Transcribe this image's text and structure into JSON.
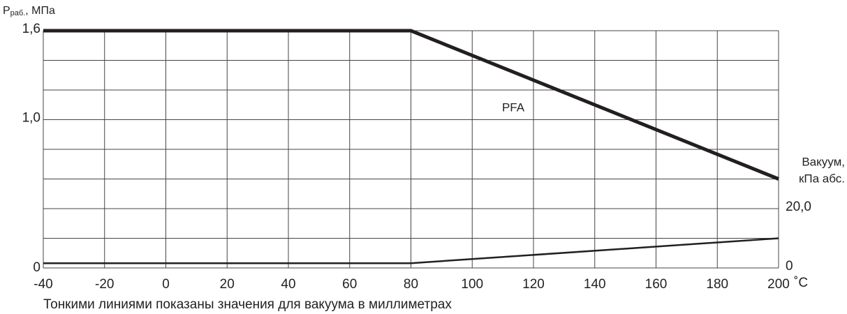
{
  "chart_data": {
    "type": "line",
    "y_label": {
      "symbol": "P",
      "subscript": "раб.",
      "unit": ", МПа"
    },
    "y2_label": [
      "Вакуум,",
      "кПа абс."
    ],
    "x_unit": "˚C",
    "footnote": "Тонкими линиями показаны значения для вакуума в миллиметрах",
    "xlim": [
      -40,
      200
    ],
    "xticks": [
      -40,
      -20,
      0,
      20,
      40,
      60,
      80,
      100,
      120,
      140,
      160,
      180,
      200
    ],
    "ylim": [
      0,
      1.6
    ],
    "yticks": [
      0,
      {
        "value": 1.0,
        "label": "1,0"
      },
      {
        "value": 1.6,
        "label": "1,6"
      }
    ],
    "ygrid": [
      0,
      0.2,
      0.4,
      0.6,
      0.8,
      1.0,
      1.2,
      1.4,
      1.6
    ],
    "y2lim": [
      0,
      80
    ],
    "y2ticks": [
      0,
      {
        "value": 20,
        "label": "20,0"
      }
    ],
    "grid": true,
    "series": [
      {
        "name": "PFA",
        "color": "#231f20",
        "width": 5,
        "x": [
          -40,
          80,
          200
        ],
        "values": [
          1.6,
          1.6,
          0.6
        ]
      },
      {
        "color": "#231f20",
        "width": 2.5,
        "axis": "y2",
        "x": [
          -40,
          80,
          200
        ],
        "values": [
          1.6,
          1.6,
          10
        ]
      }
    ]
  }
}
